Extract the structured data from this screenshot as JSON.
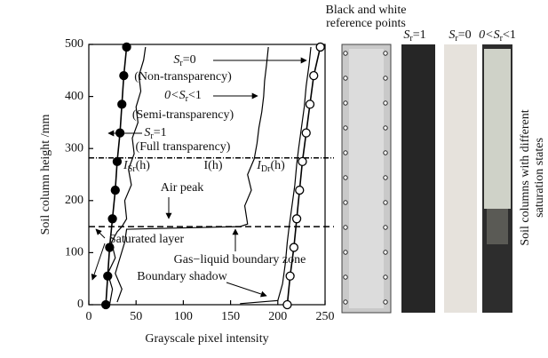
{
  "chart_data": {
    "type": "line",
    "x_label": "Grayscale pixel intensity",
    "y_label": "Soil column height /mm",
    "xlim": [
      0,
      250
    ],
    "xticks": [
      0,
      50,
      100,
      150,
      200,
      250
    ],
    "ylim": [
      0,
      500
    ],
    "yticks": [
      0,
      100,
      200,
      300,
      400,
      500
    ],
    "reference_lines": [
      282,
      150
    ],
    "series": [
      {
        "color": "#000",
        "marker": "filled",
        "x": [
          18,
          20,
          22,
          25,
          28,
          30,
          33,
          35,
          37,
          40
        ],
        "y": [
          0,
          55,
          110,
          165,
          220,
          275,
          330,
          385,
          440,
          495
        ]
      },
      {
        "color": "#000",
        "marker": "open",
        "x": [
          210,
          213,
          217,
          220,
          223,
          226,
          230,
          234,
          238,
          245
        ],
        "y": [
          0,
          55,
          110,
          165,
          220,
          275,
          330,
          385,
          440,
          495
        ]
      },
      {
        "color": "#000",
        "marker": "none",
        "x": [
          22,
          25,
          20,
          28,
          24,
          30,
          35,
          40,
          38,
          45,
          42,
          48,
          46,
          52,
          50,
          55,
          53,
          58,
          60
        ],
        "y": [
          0,
          30,
          60,
          90,
          120,
          140,
          150,
          165,
          200,
          230,
          260,
          290,
          320,
          350,
          380,
          410,
          440,
          470,
          495
        ]
      },
      {
        "color": "#000",
        "marker": "none",
        "x": [
          30,
          35,
          28,
          33,
          38,
          40,
          160,
          168,
          165,
          172,
          168,
          175,
          178,
          180,
          183,
          185,
          186,
          188,
          190
        ],
        "y": [
          5,
          30,
          60,
          90,
          120,
          145,
          150,
          155,
          190,
          220,
          250,
          280,
          310,
          340,
          370,
          400,
          430,
          460,
          495
        ]
      },
      {
        "color": "#000",
        "marker": "none",
        "x": [
          160,
          200,
          205,
          208,
          210,
          212,
          215,
          218,
          220,
          222,
          225,
          228,
          230,
          233,
          235
        ],
        "y": [
          2,
          8,
          40,
          80,
          120,
          150,
          190,
          230,
          270,
          300,
          340,
          380,
          420,
          460,
          495
        ]
      }
    ],
    "annotations": [
      {
        "text": "S",
        "sub": "r",
        "after": "=0"
      },
      {
        "text": "(Non-transparency)"
      },
      {
        "text": "0<S",
        "sub": "r",
        "after": "<1"
      },
      {
        "text": "(Semi-transparency)"
      },
      {
        "text": "S",
        "sub": "r",
        "after": "=1"
      },
      {
        "text": "(Full transparency)"
      },
      {
        "text": "I",
        "sub": "Sr",
        "after": "(h)"
      },
      {
        "text": "I(h)"
      },
      {
        "text": "I",
        "sub": "Dr",
        "after": "(h)"
      },
      {
        "text": "Air peak"
      },
      {
        "text": "Saturated layer"
      },
      {
        "text": "Gas−liquid boundary zone"
      },
      {
        "text": "Boundary shadow"
      }
    ],
    "photo_labels": [
      {
        "lines": [
          "Black and white",
          "reference points"
        ]
      },
      {
        "text": "S",
        "sub": "r",
        "after": "=1"
      },
      {
        "text": "S",
        "sub": "r",
        "after": "=0"
      },
      {
        "text": "0<S",
        "sub": "r",
        "after": "<1"
      }
    ],
    "side_label": [
      "Soil columns with different",
      "saturation states"
    ]
  }
}
